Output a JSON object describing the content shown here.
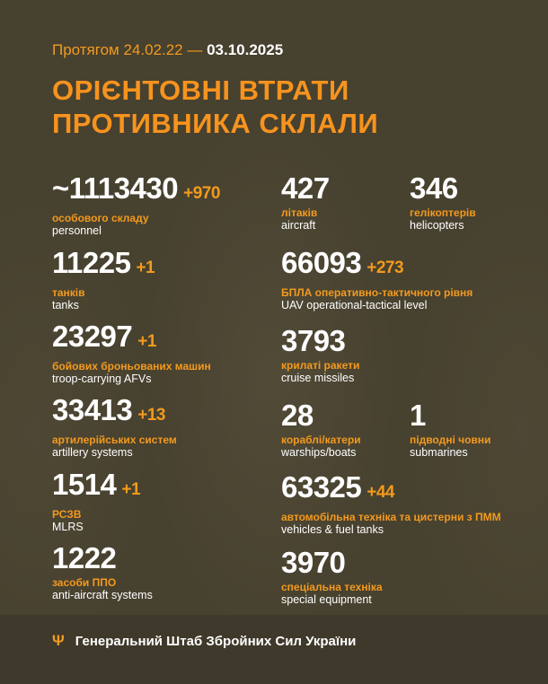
{
  "header": {
    "period_prefix": "Протягом 24.02.22 —",
    "period_date": "03.10.2025",
    "title_line1": "ОРІЄНТОВНІ ВТРАТИ",
    "title_line2": "ПРОТИВНИКА СКЛАЛИ"
  },
  "stats": [
    {
      "id": "personnel",
      "value": "~1113430",
      "increase": "+970",
      "ua": "особового складу",
      "en": "personnel"
    },
    {
      "id": "tanks",
      "value": "11225",
      "increase": "+1",
      "ua": "танків",
      "en": "tanks"
    },
    {
      "id": "afv",
      "value": "23297",
      "increase": "+1",
      "ua": "бойових броньованих машин",
      "en": "troop-carrying AFVs"
    },
    {
      "id": "artillery",
      "value": "33413",
      "increase": "+13",
      "ua": "артилерійських систем",
      "en": "artillery systems"
    },
    {
      "id": "mlrs",
      "value": "1514",
      "increase": "+1",
      "ua": "РСЗВ",
      "en": "MLRS"
    },
    {
      "id": "air-defense",
      "value": "1222",
      "increase": "",
      "ua": "засоби ППО",
      "en": "anti-aircraft systems"
    },
    {
      "id": "aircraft",
      "value": "427",
      "increase": "",
      "ua": "літаків",
      "en": "aircraft"
    },
    {
      "id": "helicopters",
      "value": "346",
      "increase": "",
      "ua": "гелікоптерів",
      "en": "helicopters"
    },
    {
      "id": "uav",
      "value": "66093",
      "increase": "+273",
      "ua": "БПЛА оперативно-тактичного рівня",
      "en": "UAV operational-tactical level"
    },
    {
      "id": "cruise-missiles",
      "value": "3793",
      "increase": "",
      "ua": "крилаті ракети",
      "en": "cruise missiles"
    },
    {
      "id": "warships",
      "value": "28",
      "increase": "",
      "ua": "кораблі/катери",
      "en": "warships/boats"
    },
    {
      "id": "submarines",
      "value": "1",
      "increase": "",
      "ua": "підводні човни",
      "en": "submarines"
    },
    {
      "id": "vehicles",
      "value": "63325",
      "increase": "+44",
      "ua": "автомобільна техніка та цистерни з ПММ",
      "en": "vehicles & fuel tanks"
    },
    {
      "id": "special-equipment",
      "value": "3970",
      "increase": "",
      "ua": "спеціальна техніка",
      "en": "special equipment"
    }
  ],
  "footer": {
    "icon": "trident-icon",
    "text": "Генеральний Штаб Збройних Сил України"
  },
  "colors": {
    "background": "#47412f",
    "accent": "#f7931e",
    "text": "#ffffff"
  }
}
